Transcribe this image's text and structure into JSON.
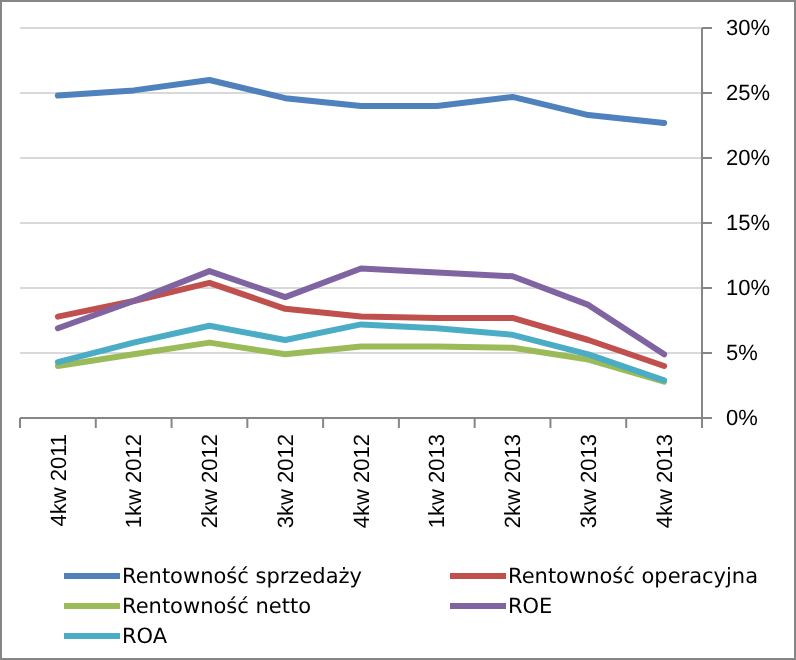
{
  "chart_data": {
    "type": "line",
    "categories": [
      "4kw 2011",
      "1kw 2012",
      "2kw 2012",
      "3kw 2012",
      "4kw 2012",
      "1kw 2013",
      "2kw 2013",
      "3kw 2013",
      "4kw 2013"
    ],
    "series": [
      {
        "name": "Rentowność sprzedaży",
        "color": "#4f81bd",
        "values": [
          24.8,
          25.2,
          26.0,
          24.6,
          24.0,
          24.0,
          24.7,
          23.3,
          22.7
        ]
      },
      {
        "name": "Rentowność operacyjna",
        "color": "#c0504d",
        "values": [
          7.8,
          9.0,
          10.4,
          8.4,
          7.8,
          7.7,
          7.7,
          6.0,
          4.0
        ]
      },
      {
        "name": "Rentowność netto",
        "color": "#9bbb59",
        "values": [
          4.0,
          4.9,
          5.8,
          4.9,
          5.5,
          5.5,
          5.4,
          4.5,
          2.8
        ]
      },
      {
        "name": "ROE",
        "color": "#8064a2",
        "values": [
          6.9,
          9.0,
          11.3,
          9.3,
          11.5,
          11.2,
          10.9,
          8.7,
          4.9
        ]
      },
      {
        "name": "ROA",
        "color": "#4bacc6",
        "values": [
          4.3,
          5.8,
          7.1,
          6.0,
          7.2,
          6.9,
          6.4,
          4.9,
          2.9
        ]
      }
    ],
    "ylim": [
      0,
      30
    ],
    "yticks": [
      {
        "value": 0,
        "label": "0%"
      },
      {
        "value": 5,
        "label": "5%"
      },
      {
        "value": 10,
        "label": "10%"
      },
      {
        "value": 15,
        "label": "15%"
      },
      {
        "value": 20,
        "label": "20%"
      },
      {
        "value": 25,
        "label": "25%"
      },
      {
        "value": 30,
        "label": "30%"
      }
    ],
    "grid": "y",
    "legend": "bottom",
    "marker": "none",
    "line_style": "solid"
  }
}
